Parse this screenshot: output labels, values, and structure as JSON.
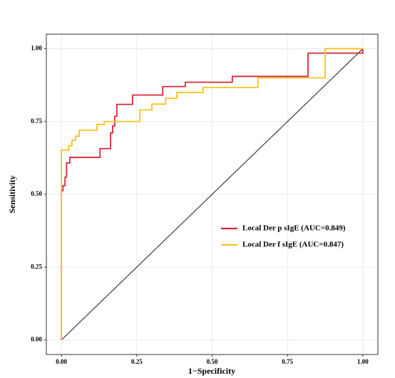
{
  "chart_data": {
    "type": "line",
    "step": true,
    "x_label": "1−Specificity",
    "y_label": "Sensitivity",
    "xlim": [
      -0.05,
      1.05
    ],
    "ylim": [
      -0.05,
      1.05
    ],
    "xticks": [
      {
        "value": 0,
        "label": "0.00"
      },
      {
        "value": 0.25,
        "label": "0.25"
      },
      {
        "value": 0.5,
        "label": "0.50"
      },
      {
        "value": 0.75,
        "label": "0.75"
      },
      {
        "value": 1,
        "label": "1.00"
      }
    ],
    "yticks": [
      {
        "value": 0,
        "label": "0.00"
      },
      {
        "value": 0.25,
        "label": "0.25"
      },
      {
        "value": 0.5,
        "label": "0.50"
      },
      {
        "value": 0.75,
        "label": "0.75"
      },
      {
        "value": 1,
        "label": "1.00"
      }
    ],
    "grid": true,
    "diagonal": true,
    "legend": "right",
    "series": [
      {
        "name": "Local Der p sIgE (AUC=0.849)",
        "color": "#d62839",
        "x": [
          0,
          0,
          0.005,
          0.005,
          0.012,
          0.012,
          0.017,
          0.017,
          0.028,
          0.028,
          0.128,
          0.128,
          0.163,
          0.163,
          0.17,
          0.17,
          0.177,
          0.177,
          0.184,
          0.184,
          0.236,
          0.236,
          0.336,
          0.336,
          0.411,
          0.411,
          0.567,
          0.567,
          0.818,
          0.818,
          1,
          1
        ],
        "values": [
          0,
          0.512,
          0.512,
          0.53,
          0.53,
          0.559,
          0.559,
          0.608,
          0.608,
          0.627,
          0.627,
          0.657,
          0.657,
          0.711,
          0.711,
          0.735,
          0.735,
          0.768,
          0.768,
          0.809,
          0.809,
          0.841,
          0.841,
          0.87,
          0.87,
          0.885,
          0.885,
          0.905,
          0.905,
          0.985,
          0.985,
          1
        ]
      },
      {
        "name": "Local Der f sIgE (AUC=0.847)",
        "color": "#f7c31e",
        "x": [
          0,
          0,
          0.024,
          0.024,
          0.035,
          0.035,
          0.047,
          0.047,
          0.059,
          0.059,
          0.118,
          0.118,
          0.142,
          0.142,
          0.26,
          0.26,
          0.3,
          0.3,
          0.346,
          0.346,
          0.383,
          0.383,
          0.47,
          0.47,
          0.652,
          0.652,
          0.875,
          0.875,
          1
        ],
        "values": [
          0,
          0.652,
          0.652,
          0.667,
          0.667,
          0.686,
          0.686,
          0.7,
          0.7,
          0.72,
          0.72,
          0.74,
          0.74,
          0.75,
          0.75,
          0.79,
          0.79,
          0.81,
          0.81,
          0.83,
          0.83,
          0.85,
          0.85,
          0.867,
          0.867,
          0.9,
          0.9,
          1,
          1
        ]
      }
    ]
  }
}
